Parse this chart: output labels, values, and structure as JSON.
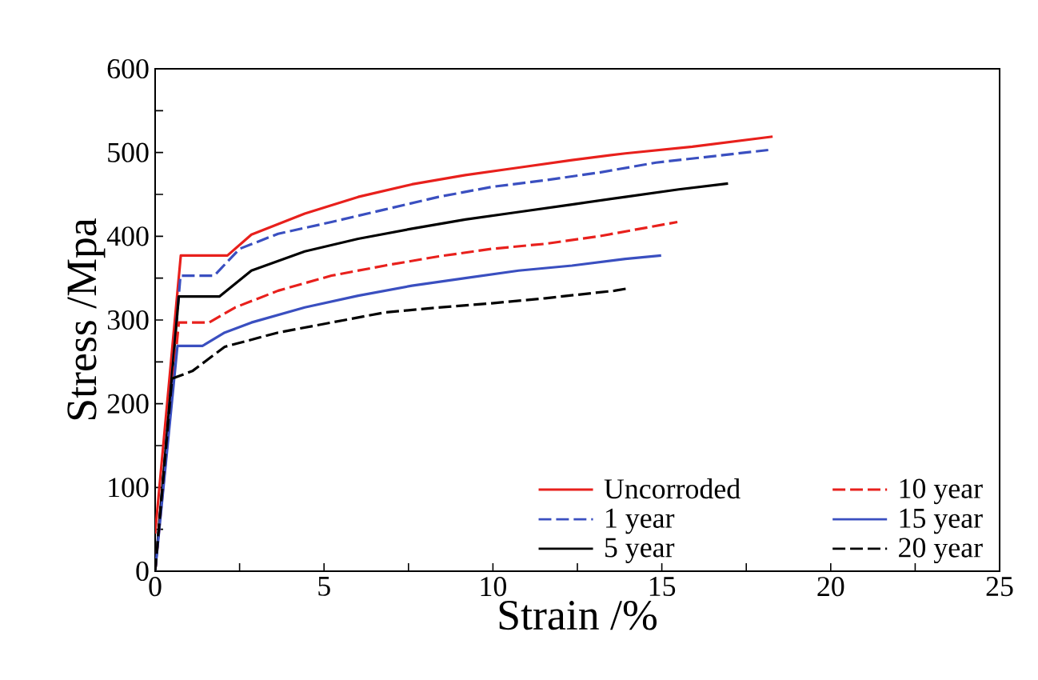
{
  "chart_data": {
    "type": "line",
    "xlabel": "Strain /%",
    "ylabel": "Stress /Mpa",
    "xlim": [
      0,
      25
    ],
    "ylim": [
      0,
      600
    ],
    "xticks": [
      0,
      5,
      10,
      15,
      20,
      25
    ],
    "yticks": [
      0,
      100,
      200,
      300,
      400,
      500,
      600
    ],
    "legend": "bottom right",
    "grid": false,
    "marker": "none",
    "series": [
      {
        "name": "Uncorroded",
        "color": "#e8201c",
        "line_style": "solid",
        "x": [
          0,
          0.76,
          2.14,
          2.85,
          4.43,
          6.01,
          7.6,
          9.18,
          10.76,
          12.34,
          13.92,
          15.9,
          18.28
        ],
        "values": [
          45,
          377,
          377,
          402,
          427,
          447,
          462,
          473,
          482,
          491,
          499,
          507,
          519
        ]
      },
      {
        "name": "1 year",
        "color": "#3a4fc0",
        "line_style": "dashed",
        "x": [
          0,
          0.75,
          1.75,
          2.5,
          3.64,
          5.22,
          6.8,
          8.39,
          9.97,
          11.55,
          13.13,
          14.83,
          18.15
        ],
        "values": [
          0,
          353,
          353,
          385,
          403,
          417,
          432,
          447,
          459,
          467,
          476,
          488,
          503
        ]
      },
      {
        "name": "5 year",
        "color": "#000000",
        "line_style": "solid",
        "x": [
          0,
          0.7,
          1.9,
          2.85,
          4.43,
          6.01,
          7.6,
          9.18,
          10.76,
          12.34,
          13.92,
          15.5,
          16.96
        ],
        "values": [
          0,
          328,
          328,
          359,
          382,
          397,
          409,
          420,
          429,
          438,
          447,
          456,
          463
        ]
      },
      {
        "name": "10 year",
        "color": "#e8201c",
        "line_style": "dashed",
        "x": [
          0,
          0.7,
          1.6,
          2.37,
          3.64,
          5.22,
          6.8,
          8.39,
          9.97,
          11.55,
          13.13,
          15.46
        ],
        "values": [
          0,
          297,
          297,
          315,
          335,
          353,
          365,
          376,
          385,
          391,
          400,
          417
        ]
      },
      {
        "name": "15 year",
        "color": "#3a4fc0",
        "line_style": "solid",
        "x": [
          0,
          0.66,
          1.4,
          2.06,
          2.85,
          4.43,
          6.01,
          7.6,
          9.18,
          10.76,
          12.34,
          13.92,
          14.98
        ],
        "values": [
          0,
          269,
          269,
          285,
          297,
          315,
          329,
          341,
          350,
          359,
          365,
          373,
          377
        ]
      },
      {
        "name": "20 year",
        "color": "#000000",
        "line_style": "dashed",
        "x": [
          0,
          0.5,
          1.1,
          2.06,
          3.64,
          5.22,
          6.8,
          8.39,
          9.97,
          11.55,
          13.6,
          14.03
        ],
        "values": [
          0,
          230,
          239,
          268,
          285,
          297,
          309,
          315,
          320,
          326,
          335,
          338
        ]
      }
    ]
  }
}
